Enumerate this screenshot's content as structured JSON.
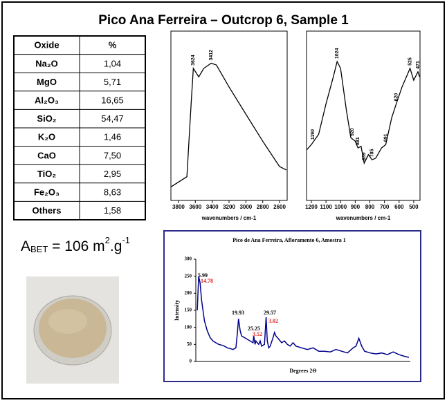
{
  "title": "Pico Ana Ferreira – Outcrop 6, Sample 1",
  "table": {
    "header": [
      "Oxide",
      "%"
    ],
    "rows": [
      [
        "Na₂O",
        "1,04"
      ],
      [
        "MgO",
        "5,71"
      ],
      [
        "Al₂O₃",
        "16,65"
      ],
      [
        "SiO₂",
        "54,47"
      ],
      [
        "K₂O",
        "1,46"
      ],
      [
        "CaO",
        "7,50"
      ],
      [
        "TiO₂",
        "2,95"
      ],
      [
        "Fe₂O₃",
        "8,63"
      ],
      [
        "Others",
        "1,58"
      ]
    ]
  },
  "abet": [
    "A",
    "BET",
    " = 106 m",
    "2",
    ".g",
    "-1"
  ],
  "chart_data": [
    {
      "type": "line",
      "xlabel": "wavenumbers / cm-1",
      "color": "#000000",
      "x": [
        3890,
        3700,
        3650,
        3624,
        3560,
        3500,
        3412,
        3350,
        3200,
        3000,
        2800,
        2600,
        2520
      ],
      "values": [
        8,
        14,
        57,
        78,
        73,
        78,
        81,
        80,
        67,
        51,
        35,
        20,
        18
      ],
      "xlim": [
        3890,
        2510
      ],
      "ylim": [
        0,
        100
      ],
      "xticks": [
        3800,
        3600,
        3400,
        3200,
        3000,
        2800,
        2600
      ],
      "peaks": [
        3624,
        3412
      ]
    },
    {
      "type": "line",
      "xlabel": "wavenumbers / cm-1",
      "color": "#000000",
      "x": [
        1230,
        1200,
        1150,
        1100,
        1050,
        1024,
        1000,
        960,
        930,
        900,
        881,
        860,
        839,
        810,
        785,
        760,
        720,
        691,
        650,
        620,
        580,
        550,
        525,
        500,
        471,
        460
      ],
      "values": [
        30,
        33,
        39,
        57,
        73,
        82,
        78,
        53,
        37,
        35,
        31,
        32,
        22,
        27,
        24,
        25,
        31,
        33,
        49,
        57,
        67,
        73,
        78,
        71,
        76,
        73
      ],
      "xlim": [
        1233,
        457
      ],
      "ylim": [
        0,
        100
      ],
      "xticks": [
        1200,
        1100,
        1000,
        900,
        800,
        700,
        600,
        500
      ],
      "peaks": [
        1190,
        1024,
        920,
        881,
        839,
        785,
        691,
        620,
        525,
        471
      ]
    },
    {
      "type": "line",
      "title": "Pico de Ana Ferreira, Afloramento 6, Amostra 1",
      "ylabel": "Intensity",
      "xlabel": "Degrees 2Θ",
      "color": "#00008b",
      "x": [
        5.5,
        6,
        6.5,
        7,
        8,
        9,
        10,
        11,
        12,
        13,
        14,
        15,
        16,
        17,
        18,
        19,
        19.5,
        19.93,
        20.5,
        21,
        22,
        23,
        24,
        25,
        25.25,
        25.7,
        26,
        26.5,
        27,
        27.5,
        28,
        29,
        29.57,
        30,
        30.5,
        31,
        32,
        32.5,
        33,
        34,
        35,
        36,
        37,
        38,
        39,
        40,
        42,
        44,
        46,
        48,
        50,
        52,
        54,
        56,
        58,
        60,
        61,
        62,
        63,
        64,
        66,
        68,
        70,
        72,
        74,
        76,
        78,
        79.5
      ],
      "values": [
        150,
        250,
        230,
        180,
        120,
        90,
        70,
        60,
        55,
        50,
        48,
        45,
        40,
        38,
        35,
        40,
        80,
        125,
        90,
        75,
        70,
        65,
        60,
        55,
        75,
        50,
        60,
        55,
        50,
        60,
        45,
        50,
        130,
        60,
        40,
        45,
        70,
        85,
        75,
        65,
        55,
        60,
        50,
        45,
        55,
        45,
        40,
        35,
        40,
        30,
        30,
        28,
        35,
        30,
        25,
        40,
        45,
        68,
        45,
        30,
        25,
        22,
        25,
        20,
        28,
        20,
        15,
        12
      ],
      "xlim": [
        5,
        80
      ],
      "ylim": [
        0,
        300
      ],
      "yticks": [
        0,
        50,
        100,
        150,
        200,
        250,
        300
      ],
      "annotations": [
        {
          "text": 5.99,
          "color": "#000000"
        },
        {
          "text": 14.78,
          "color": "#e02020"
        },
        {
          "text": 19.93,
          "color": "#000000"
        },
        {
          "text": 25.25,
          "color": "#000000"
        },
        {
          "text": 3.52,
          "color": "#e02020"
        },
        {
          "text": 29.57,
          "color": "#000000"
        },
        {
          "text": 3.02,
          "color": "#e02020"
        }
      ]
    }
  ]
}
